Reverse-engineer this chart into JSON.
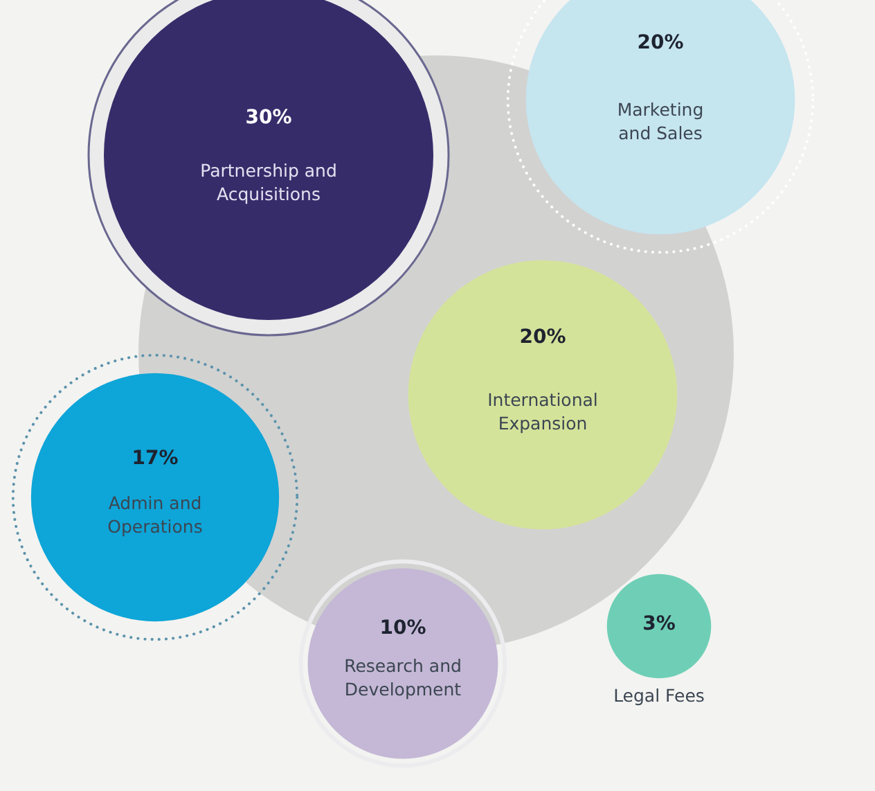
{
  "chart_data": {
    "type": "other",
    "categories": [
      "Partnership and Acquisitions",
      "Marketing and Sales",
      "International Expansion",
      "Admin and Operations",
      "Research and Development",
      "Legal Fees"
    ],
    "values": [
      30,
      20,
      20,
      17,
      10,
      3
    ],
    "value_labels": [
      "30%",
      "20%",
      "20%",
      "17%",
      "10%",
      "3%"
    ],
    "colors": [
      "#372c6a",
      "#c5e5ef",
      "#d4e39a",
      "#0ea5d8",
      "#c4b8d6",
      "#6ecfb6"
    ]
  }
}
